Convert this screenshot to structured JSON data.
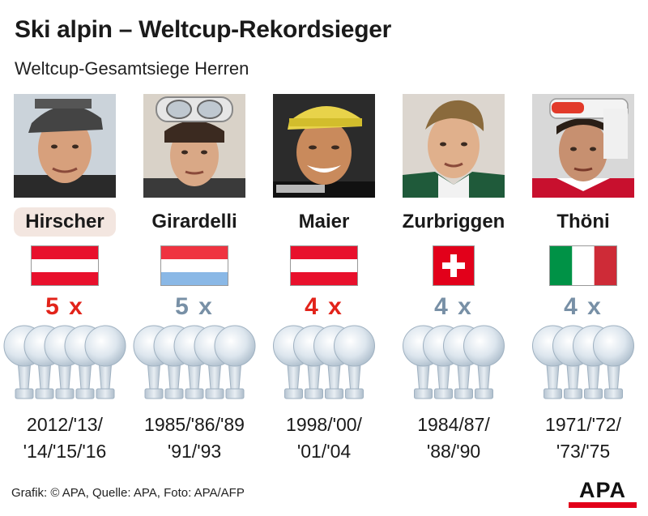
{
  "title": "Ski alpin – Weltcup-Rekordsieger",
  "subtitle": "Weltcup-Gesamtsiege Herren",
  "footer": "Grafik: © APA, Quelle: APA, Foto: APA/AFP",
  "logo": "APA",
  "colors": {
    "red_count": "#e2231a",
    "blue_count": "#7890a6",
    "highlight": "#f3e6e0",
    "austria_red": "#e8102c",
    "luxembourg_red": "#ef3340",
    "luxembourg_blue": "#8ab8e6",
    "swiss_red": "#e2001a",
    "italy_green": "#009246",
    "italy_red": "#ce2b37"
  },
  "chart_data": {
    "type": "bar",
    "title": "Ski alpin – Weltcup-Rekordsieger",
    "subtitle": "Weltcup-Gesamtsiege Herren",
    "categories": [
      "Hirscher",
      "Girardelli",
      "Maier",
      "Zurbriggen",
      "Thöni"
    ],
    "values": [
      5,
      5,
      4,
      4,
      4
    ],
    "labels": [
      "5 x",
      "5 x",
      "4 x",
      "4 x",
      "4 x"
    ],
    "countries": [
      "Austria",
      "Luxembourg",
      "Austria",
      "Switzerland",
      "Italy"
    ],
    "flag_icons": [
      "flag-austria-icon",
      "flag-luxembourg-icon",
      "flag-austria-icon",
      "flag-switzerland-icon",
      "flag-italy-icon"
    ],
    "years_line1": [
      "2012/'13/",
      "1985/'86/'89",
      "1998/'00/",
      "1984/87/",
      "1971/'72/"
    ],
    "years_line2": [
      "'14/'15/'16",
      "'91/'93",
      "'01/'04",
      "'88/'90",
      "'73/'75"
    ],
    "count_colors": [
      "red",
      "blue",
      "red",
      "blue",
      "blue"
    ],
    "highlighted": "Hirscher"
  }
}
